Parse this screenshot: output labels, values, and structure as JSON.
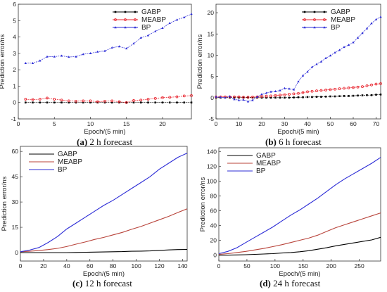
{
  "chart_data": [
    {
      "type": "line",
      "panel": "a",
      "caption_letter": "(a)",
      "caption_text": " 2 h forecast",
      "xlabel": "Epoch/(5 min)",
      "ylabel": "Prediction error/ns",
      "xlim": [
        0,
        24
      ],
      "ylim": [
        -1,
        6
      ],
      "xticks": [
        0,
        5,
        10,
        15,
        20
      ],
      "yticks": [
        -1,
        0,
        1,
        2,
        3,
        4,
        5,
        6
      ],
      "legend_position": "top-right",
      "x": [
        1,
        2,
        3,
        4,
        5,
        6,
        7,
        8,
        9,
        10,
        11,
        12,
        13,
        14,
        15,
        16,
        17,
        18,
        19,
        20,
        21,
        22,
        23,
        24
      ],
      "series": [
        {
          "name": "GABP",
          "color": "#000000",
          "marker": "square",
          "values": [
            0,
            0,
            0,
            0,
            0,
            0,
            0,
            0,
            0,
            0,
            0,
            0,
            0,
            0,
            0,
            0,
            0,
            0,
            0,
            0,
            0,
            0,
            0,
            0
          ]
        },
        {
          "name": "MEABP",
          "color": "#e8202a",
          "marker": "circle",
          "values": [
            0.2,
            0.18,
            0.2,
            0.27,
            0.2,
            0.15,
            0.1,
            0.08,
            0.1,
            0.1,
            0.05,
            0.08,
            0.1,
            0.05,
            0.0,
            0.12,
            0.15,
            0.2,
            0.25,
            0.3,
            0.32,
            0.35,
            0.4,
            0.42
          ]
        },
        {
          "name": "BP",
          "color": "#2b2bd6",
          "marker": "triangle",
          "values": [
            2.4,
            2.4,
            2.55,
            2.8,
            2.8,
            2.85,
            2.78,
            2.8,
            2.95,
            3.0,
            3.1,
            3.15,
            3.35,
            3.42,
            3.3,
            3.6,
            3.95,
            4.1,
            4.35,
            4.55,
            4.85,
            5.05,
            5.2,
            5.4
          ]
        }
      ]
    },
    {
      "type": "line",
      "panel": "b",
      "caption_letter": "(b)",
      "caption_text": " 6 h forecast",
      "xlabel": "Epoch/(5 min)",
      "ylabel": "Prediction error/ns",
      "xlim": [
        0,
        72
      ],
      "ylim": [
        -5,
        22
      ],
      "xticks": [
        0,
        10,
        20,
        30,
        40,
        50,
        60,
        70
      ],
      "yticks": [
        -5,
        0,
        5,
        10,
        15,
        20
      ],
      "legend_position": "top-right",
      "x": [
        0,
        2,
        4,
        6,
        8,
        10,
        12,
        14,
        16,
        18,
        20,
        22,
        24,
        26,
        28,
        30,
        32,
        34,
        36,
        38,
        40,
        42,
        44,
        46,
        48,
        50,
        52,
        54,
        56,
        58,
        60,
        62,
        64,
        66,
        68,
        70,
        72
      ],
      "series": [
        {
          "name": "GABP",
          "color": "#000000",
          "marker": "square",
          "values": [
            0,
            0,
            0,
            0,
            0,
            0,
            0,
            0,
            0,
            0,
            0,
            0,
            0,
            0,
            0,
            0,
            0,
            0.05,
            0.1,
            0.1,
            0.15,
            0.15,
            0.2,
            0.2,
            0.25,
            0.3,
            0.3,
            0.35,
            0.4,
            0.4,
            0.45,
            0.5,
            0.55,
            0.6,
            0.6,
            0.7,
            0.75
          ]
        },
        {
          "name": "MEABP",
          "color": "#e8202a",
          "marker": "circle",
          "values": [
            0.2,
            0.2,
            0.2,
            0.2,
            0.2,
            0.2,
            0.1,
            0.1,
            0.15,
            0.2,
            0.3,
            0.35,
            0.4,
            0.5,
            0.6,
            0.7,
            0.8,
            0.9,
            1.0,
            1.2,
            1.4,
            1.5,
            1.6,
            1.7,
            1.8,
            1.9,
            2.0,
            2.1,
            2.2,
            2.3,
            2.4,
            2.5,
            2.6,
            2.8,
            3.0,
            3.2,
            3.3
          ]
        },
        {
          "name": "BP",
          "color": "#2b2bd6",
          "marker": "triangle",
          "values": [
            0.2,
            0.1,
            0,
            0.3,
            -0.4,
            -0.6,
            -0.5,
            -0.9,
            -0.6,
            0.2,
            0.8,
            1.1,
            1.4,
            1.5,
            1.7,
            2.2,
            2.1,
            1.9,
            3.8,
            5.2,
            6.1,
            7.2,
            7.9,
            8.5,
            9.3,
            9.9,
            10.6,
            11.2,
            11.9,
            12.4,
            13.0,
            14.1,
            15.2,
            16.3,
            17.5,
            18.4,
            19.0
          ]
        }
      ]
    },
    {
      "type": "line",
      "panel": "c",
      "caption_letter": "(c)",
      "caption_text": " 12 h forecast",
      "xlabel": "Epoch/(5 min)",
      "ylabel": "Prediction error/ns",
      "xlim": [
        0,
        144
      ],
      "ylim": [
        -5,
        63
      ],
      "xticks": [
        0,
        20,
        40,
        60,
        80,
        100,
        120,
        140
      ],
      "yticks": [
        0,
        15,
        30,
        45,
        60
      ],
      "legend_position": "top-left",
      "x": [
        0,
        8,
        16,
        24,
        32,
        40,
        48,
        56,
        64,
        72,
        80,
        88,
        96,
        104,
        112,
        120,
        128,
        136,
        144
      ],
      "series": [
        {
          "name": "GABP",
          "color": "#000000",
          "marker": "none",
          "values": [
            0,
            0,
            0,
            0,
            0,
            0,
            0.1,
            0.2,
            0.3,
            0.4,
            0.5,
            0.6,
            0.8,
            0.9,
            1.0,
            1.3,
            1.6,
            1.8,
            1.9
          ]
        },
        {
          "name": "MEABP",
          "color": "#b8433a",
          "marker": "none",
          "values": [
            0.5,
            0.8,
            1.2,
            1.8,
            2.5,
            3.6,
            5.0,
            6.3,
            7.8,
            9.0,
            10.5,
            12.0,
            13.8,
            15.5,
            17.5,
            19.5,
            21.5,
            23.8,
            26.0
          ]
        },
        {
          "name": "BP",
          "color": "#2b2bd6",
          "marker": "none",
          "values": [
            0.5,
            1.5,
            3,
            6,
            9.5,
            14,
            17.5,
            21,
            24.5,
            28,
            31,
            34.5,
            38,
            41.5,
            45,
            49.5,
            53,
            56.5,
            59
          ]
        }
      ]
    },
    {
      "type": "line",
      "panel": "d",
      "caption_letter": "(d)",
      "caption_text": " 24 h forecast",
      "xlabel": "Epoch/(5 min)",
      "ylabel": "Prediction error/ns",
      "xlim": [
        0,
        288
      ],
      "ylim": [
        -8,
        145
      ],
      "xticks": [
        0,
        50,
        100,
        150,
        200,
        250
      ],
      "yticks": [
        0,
        20,
        40,
        60,
        80,
        100,
        120,
        140
      ],
      "legend_position": "top-left",
      "x": [
        0,
        16,
        32,
        48,
        64,
        80,
        96,
        112,
        128,
        144,
        160,
        176,
        192,
        208,
        224,
        240,
        256,
        272,
        288
      ],
      "series": [
        {
          "name": "GABP",
          "color": "#000000",
          "marker": "none",
          "values": [
            0,
            0,
            0.3,
            0.6,
            1.0,
            1.5,
            2.0,
            2.8,
            3.5,
            4.5,
            6.0,
            8.0,
            10.0,
            12.5,
            14.5,
            16.5,
            18.5,
            20.5,
            24.0
          ]
        },
        {
          "name": "MEABP",
          "color": "#b8433a",
          "marker": "none",
          "values": [
            1,
            2,
            3.5,
            5,
            7,
            9,
            11.5,
            14,
            17,
            20,
            23,
            27,
            32,
            37,
            41,
            45,
            49,
            53,
            57
          ]
        },
        {
          "name": "BP",
          "color": "#2b2bd6",
          "marker": "none",
          "values": [
            2,
            5,
            10,
            17,
            24,
            31,
            38,
            46,
            54,
            61,
            69,
            77,
            86,
            95,
            103,
            110,
            117,
            124,
            132
          ]
        }
      ]
    }
  ]
}
